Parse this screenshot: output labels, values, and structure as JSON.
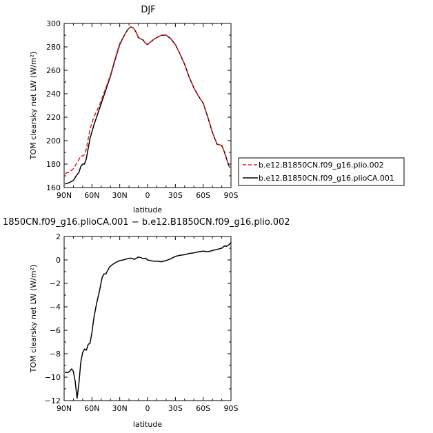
{
  "chart_data": [
    {
      "type": "line",
      "title": "DJF",
      "xlabel": "latitude",
      "ylabel": "TOM clearsky net LW (W/m²)",
      "xlim": [
        90,
        -90
      ],
      "ylim": [
        160,
        300
      ],
      "x_ticks": [
        90,
        60,
        30,
        0,
        -30,
        -60,
        -90
      ],
      "x_tick_labels": [
        "90N",
        "60N",
        "30N",
        "0",
        "30S",
        "60S",
        "90S"
      ],
      "y_ticks": [
        160,
        180,
        200,
        220,
        240,
        260,
        280,
        300
      ],
      "y_tick_labels": [
        "160",
        "180",
        "200",
        "220",
        "240",
        "260",
        "280",
        "300"
      ],
      "legend": "right",
      "series": [
        {
          "name": "b.e12.B1850CN.f09_g16.plio.002",
          "color": "#e41a1c",
          "style": "dashed",
          "x": [
            89,
            85,
            80,
            77,
            74,
            72,
            70,
            68,
            66,
            62,
            58,
            52,
            46,
            40,
            35,
            30,
            25,
            22,
            20,
            18,
            15,
            12,
            10,
            8,
            5,
            2,
            0,
            -3,
            -6,
            -10,
            -15,
            -20,
            -25,
            -30,
            -35,
            -40,
            -45,
            -50,
            -55,
            -60,
            -65,
            -70,
            -75,
            -80,
            -83,
            -85,
            -88,
            -89
          ],
          "y": [
            172,
            173,
            176,
            180,
            184,
            187,
            187,
            188,
            193,
            210,
            220,
            230,
            243,
            256,
            270,
            283,
            290,
            294,
            296,
            297,
            296,
            292,
            288,
            287,
            286,
            283,
            282,
            284,
            286,
            288,
            290,
            290,
            287,
            282,
            274,
            265,
            254,
            245,
            238,
            232,
            220,
            207,
            197,
            196,
            190,
            185,
            178,
            177
          ]
        },
        {
          "name": "b.e12.B1850CN.f09_g16.plioCA.001",
          "color": "#000000",
          "style": "solid",
          "x": [
            89,
            85,
            80,
            77,
            74,
            72,
            70,
            68,
            66,
            62,
            58,
            52,
            46,
            40,
            35,
            30,
            25,
            22,
            20,
            18,
            15,
            12,
            10,
            8,
            5,
            2,
            0,
            -3,
            -6,
            -10,
            -15,
            -20,
            -25,
            -30,
            -35,
            -40,
            -45,
            -50,
            -55,
            -60,
            -65,
            -70,
            -75,
            -80,
            -83,
            -85,
            -88,
            -89
          ],
          "y": [
            163,
            164,
            166,
            170,
            173,
            178,
            180,
            180,
            185,
            202,
            213,
            227,
            241,
            255,
            269,
            282,
            290,
            294,
            296,
            297,
            296,
            292,
            288,
            287,
            286,
            283,
            282,
            284,
            286,
            288,
            290,
            290,
            287,
            282,
            274,
            265,
            254,
            245,
            238,
            232,
            220,
            207,
            197,
            196,
            190,
            185,
            178,
            177
          ]
        }
      ]
    },
    {
      "type": "line",
      "title": "1850CN.f09_g16.plioCA.001 − b.e12.B1850CN.f09_g16.plio.002",
      "xlabel": "latitude",
      "ylabel": "TOM clearsky net LW (W/m²)",
      "xlim": [
        90,
        -90
      ],
      "ylim": [
        -12,
        2
      ],
      "x_ticks": [
        90,
        60,
        30,
        0,
        -30,
        -60,
        -90
      ],
      "x_tick_labels": [
        "90N",
        "60N",
        "30N",
        "0",
        "30S",
        "60S",
        "90S"
      ],
      "y_ticks": [
        -12,
        -10,
        -8,
        -6,
        -4,
        -2,
        0,
        2
      ],
      "y_tick_labels": [
        "−12",
        "−10",
        "−8",
        "−6",
        "−4",
        "−2",
        "0",
        "2"
      ],
      "series": [
        {
          "color": "#000000",
          "style": "solid",
          "x": [
            89,
            86,
            84,
            82,
            80,
            78,
            76,
            74,
            72,
            70,
            68,
            66,
            64,
            62,
            60,
            58,
            55,
            52,
            49,
            47,
            45,
            43,
            41,
            38,
            34,
            30,
            26,
            22,
            18,
            14,
            10,
            7,
            5,
            2,
            0,
            -3,
            -6,
            -10,
            -15,
            -20,
            -25,
            -30,
            -35,
            -40,
            -45,
            -50,
            -55,
            -60,
            -65,
            -70,
            -75,
            -80,
            -83,
            -85,
            -88,
            -90
          ],
          "y": [
            -9.6,
            -9.6,
            -9.5,
            -9.3,
            -9.5,
            -10.4,
            -11.8,
            -10.5,
            -8.7,
            -7.9,
            -7.6,
            -7.7,
            -7.2,
            -7.1,
            -6.2,
            -5.0,
            -3.7,
            -2.7,
            -1.5,
            -1.2,
            -1.2,
            -0.9,
            -0.6,
            -0.4,
            -0.2,
            -0.05,
            0.0,
            0.1,
            0.15,
            0.05,
            0.25,
            0.2,
            0.1,
            0.15,
            0.0,
            -0.05,
            -0.1,
            -0.1,
            -0.15,
            -0.05,
            0.1,
            0.3,
            0.4,
            0.45,
            0.55,
            0.6,
            0.7,
            0.75,
            0.7,
            0.8,
            0.9,
            1.0,
            1.2,
            1.15,
            1.3,
            1.5
          ]
        }
      ]
    }
  ]
}
